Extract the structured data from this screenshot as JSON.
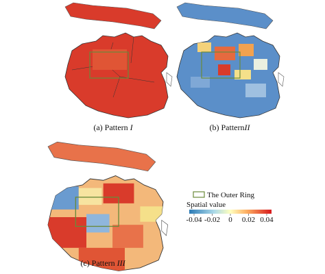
{
  "panels": [
    {
      "label": "(a) Pattern ",
      "numeral": "I"
    },
    {
      "label": "(b) Pattern",
      "numeral": "II"
    },
    {
      "label": "(c) Pattern ",
      "numeral": "III"
    }
  ],
  "legend": {
    "ring": "The Outer Ring",
    "title": "Spatial value",
    "ticks": [
      -0.04,
      -0.02,
      0,
      0.02,
      0.04
    ]
  }
}
